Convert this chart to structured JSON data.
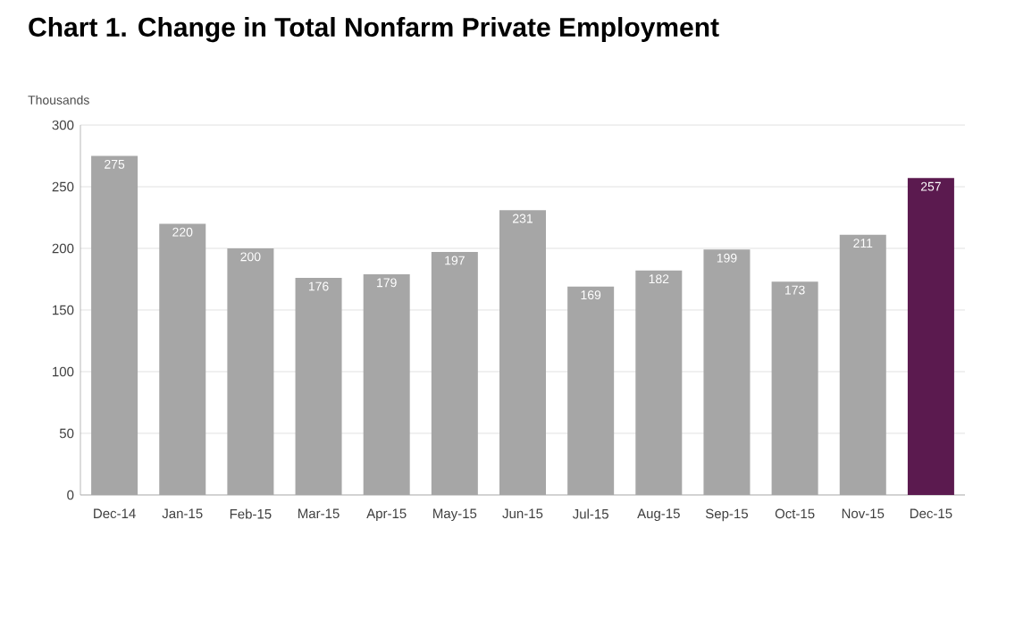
{
  "chart_data": {
    "type": "bar",
    "title": "Chart 1. Change in Total Nonfarm Private Employment",
    "ylabel": "Thousands",
    "categories": [
      "Dec-14",
      "Jan-15",
      "Feb-15",
      "Mar-15",
      "Apr-15",
      "May-15",
      "Jun-15",
      "Jul-15",
      "Aug-15",
      "Sep-15",
      "Oct-15",
      "Nov-15",
      "Dec-15"
    ],
    "values": [
      275,
      220,
      200,
      176,
      179,
      197,
      231,
      169,
      182,
      199,
      173,
      211,
      257
    ],
    "colors": [
      "#a6a6a6",
      "#a6a6a6",
      "#a6a6a6",
      "#a6a6a6",
      "#a6a6a6",
      "#a6a6a6",
      "#a6a6a6",
      "#a6a6a6",
      "#a6a6a6",
      "#a6a6a6",
      "#a6a6a6",
      "#a6a6a6",
      "#5b1a4f"
    ],
    "ylim": [
      0,
      300
    ],
    "yticks": [
      0,
      50,
      100,
      150,
      200,
      250,
      300
    ],
    "grid": "y",
    "data_labels": true
  }
}
